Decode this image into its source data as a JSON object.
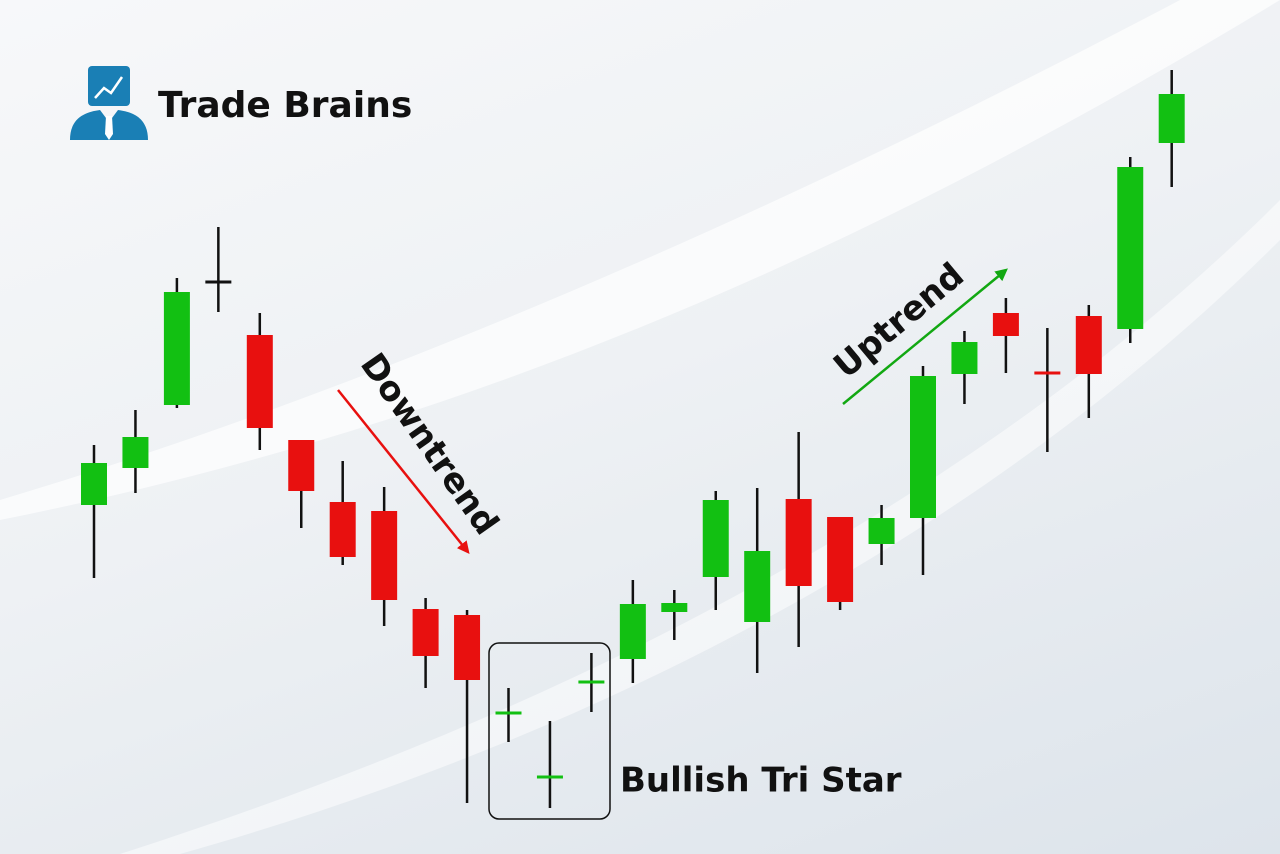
{
  "logo": {
    "text": "Trade Brains"
  },
  "chart_data": {
    "type": "candlestick",
    "open": [
      349,
      386,
      449,
      572,
      519,
      414,
      352,
      343,
      245,
      239,
      141,
      77,
      172,
      195,
      242,
      277,
      232,
      355,
      337,
      310,
      336,
      480,
      541,
      481,
      538,
      525,
      711
    ],
    "high": [
      409,
      444,
      576,
      627,
      541,
      414,
      393,
      367,
      256,
      244,
      166,
      133,
      201,
      274,
      264,
      363,
      366,
      422,
      337,
      349,
      488,
      523,
      556,
      526,
      549,
      697,
      784
    ],
    "low": [
      276,
      361,
      446,
      542,
      404,
      326,
      289,
      228,
      166,
      51,
      112,
      46,
      142,
      171,
      214,
      244,
      181,
      207,
      244,
      289,
      279,
      450,
      481,
      402,
      436,
      511,
      667
    ],
    "close": [
      391,
      417,
      562,
      572,
      426,
      363,
      297,
      254,
      198,
      174,
      141,
      77,
      172,
      250,
      251,
      354,
      303,
      268,
      252,
      336,
      478,
      512,
      518,
      481,
      480,
      687,
      760
    ],
    "colors": [
      "#12c012",
      "#12c012",
      "#12c012",
      "#111111",
      "#e8100f",
      "#e8100f",
      "#e8100f",
      "#e8100f",
      "#e8100f",
      "#e8100f",
      "#12c012",
      "#12c012",
      "#12c012",
      "#12c012",
      "#12c012",
      "#12c012",
      "#12c012",
      "#e8100f",
      "#e8100f",
      "#12c012",
      "#12c012",
      "#12c012",
      "#e8100f",
      "#e8100f",
      "#e8100f",
      "#12c012",
      "#12c012"
    ],
    "annotations": [
      "Downtrend",
      "Uptrend",
      "Bullish Tri Star"
    ]
  }
}
